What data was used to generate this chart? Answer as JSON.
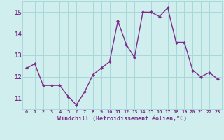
{
  "x": [
    0,
    1,
    2,
    3,
    4,
    5,
    6,
    7,
    8,
    9,
    10,
    11,
    12,
    13,
    14,
    15,
    16,
    17,
    18,
    19,
    20,
    21,
    22,
    23
  ],
  "y": [
    12.4,
    12.6,
    11.6,
    11.6,
    11.6,
    11.1,
    10.7,
    11.3,
    12.1,
    12.4,
    12.7,
    14.6,
    13.5,
    12.9,
    15.0,
    15.0,
    14.8,
    15.2,
    13.6,
    13.6,
    12.3,
    12.0,
    12.2,
    11.9
  ],
  "line_color": "#7B2D8B",
  "marker": "D",
  "marker_size": 2.0,
  "line_width": 1.0,
  "bg_color": "#D0EEEE",
  "grid_color": "#A8D8D8",
  "xlabel": "Windchill (Refroidissement éolien,°C)",
  "xlabel_color": "#7B2D8B",
  "tick_color": "#7B2D8B",
  "ylim": [
    10.5,
    15.5
  ],
  "yticks": [
    11,
    12,
    13,
    14,
    15
  ],
  "xticks": [
    0,
    1,
    2,
    3,
    4,
    5,
    6,
    7,
    8,
    9,
    10,
    11,
    12,
    13,
    14,
    15,
    16,
    17,
    18,
    19,
    20,
    21,
    22,
    23
  ],
  "tick_fontsize": 5.0,
  "ylabel_fontsize": 6.5,
  "xlabel_fontsize": 6.0
}
